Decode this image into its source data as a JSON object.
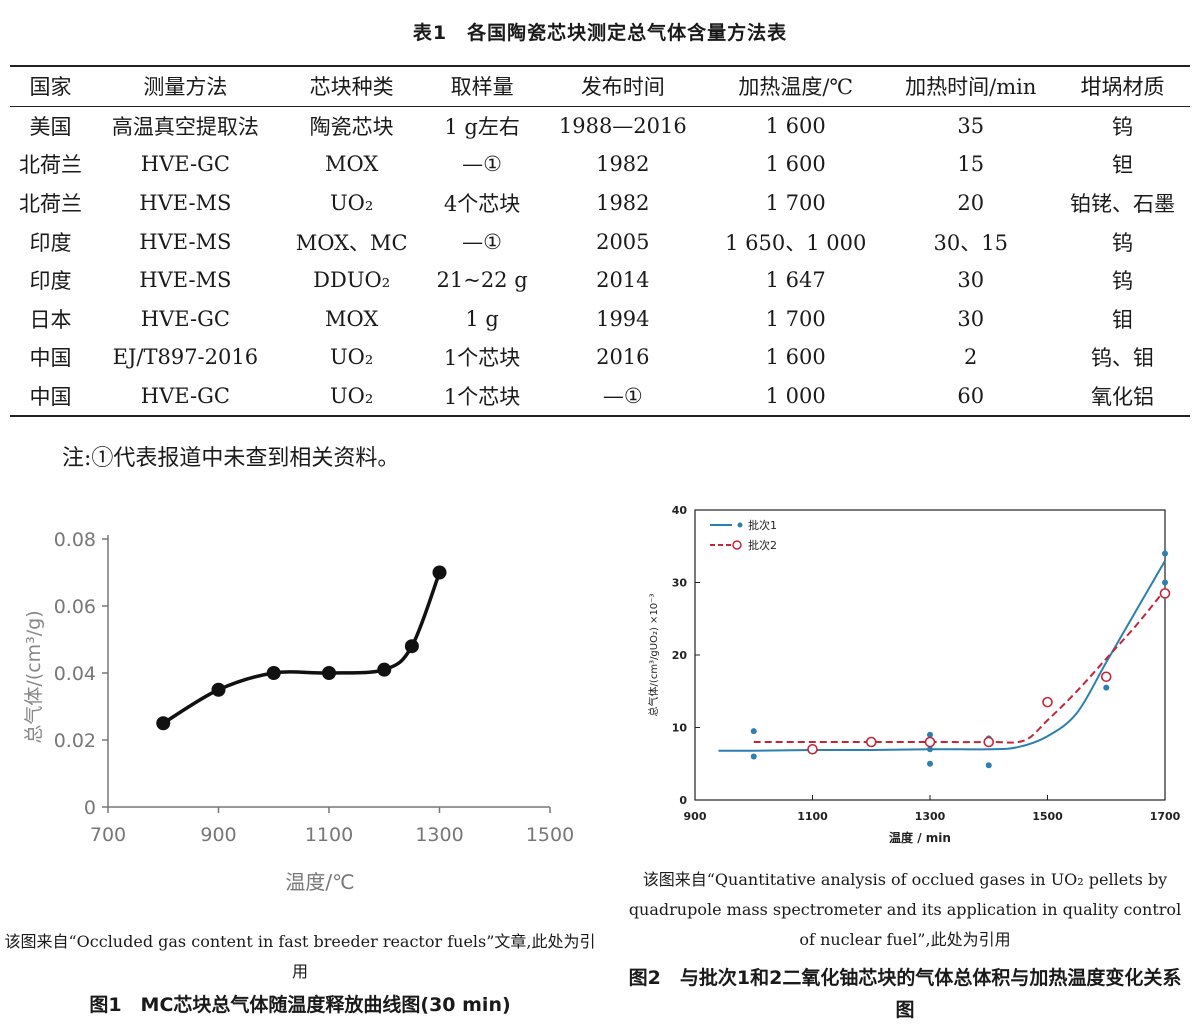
{
  "table": {
    "caption": "表1　各国陶瓷芯块测定总气体含量方法表",
    "headers": [
      "国家",
      "测量方法",
      "芯块种类",
      "取样量",
      "发布时间",
      "加热温度/℃",
      "加热时间/min",
      "坩埚材质"
    ],
    "rows": [
      [
        "美国",
        "高温真空提取法",
        "陶瓷芯块",
        "1 g左右",
        "1988—2016",
        "1 600",
        "35",
        "钨"
      ],
      [
        "北荷兰",
        "HVE-GC",
        "MOX",
        "—①",
        "1982",
        "1 600",
        "15",
        "钽"
      ],
      [
        "北荷兰",
        "HVE-MS",
        "UO₂",
        "4个芯块",
        "1982",
        "1 700",
        "20",
        "铂铑、石墨"
      ],
      [
        "印度",
        "HVE-MS",
        "MOX、MC",
        "—①",
        "2005",
        "1 650、1 000",
        "30、15",
        "钨"
      ],
      [
        "印度",
        "HVE-MS",
        "DDUO₂",
        "21~22 g",
        "2014",
        "1 647",
        "30",
        "钨"
      ],
      [
        "日本",
        "HVE-GC",
        "MOX",
        "1 g",
        "1994",
        "1 700",
        "30",
        "钼"
      ],
      [
        "中国",
        "EJ/T897-2016",
        "UO₂",
        "1个芯块",
        "2016",
        "1 600",
        "2",
        "钨、钼"
      ],
      [
        "中国",
        "HVE-GC",
        "UO₂",
        "1个芯块",
        "—①",
        "1 000",
        "60",
        "氧化铝"
      ]
    ],
    "note": "注:①代表报道中未查到相关资料。"
  },
  "fig1": {
    "source": "该图来自“Occluded gas content in fast breeder reactor fuels”文章,此处为引用",
    "caption": "图1　MC芯块总气体随温度释放曲线图(30 min)"
  },
  "fig2": {
    "source": "该图来自“Quantitative analysis of occlued gases in UO₂ pellets by quadrupole mass spectrometer and its application in quality control of nuclear fuel”,此处为引用",
    "caption": "图2　与批次1和2二氧化铀芯块的气体总体积与加热温度变化关系图"
  },
  "chart_data": [
    {
      "type": "line",
      "title": "",
      "xlabel": "温度/℃",
      "ylabel": "总气体/(cm³/g)",
      "xlim": [
        700,
        1500
      ],
      "ylim": [
        0,
        0.08
      ],
      "xticks": [
        "700",
        "900",
        "1100",
        "1300",
        "1500"
      ],
      "yticks": [
        "0",
        "0.02",
        "0.04",
        "0.06",
        "0.08"
      ],
      "series": [
        {
          "x": [
            800,
            900,
            1000,
            1100,
            1200,
            1250,
            1300
          ],
          "y": [
            0.025,
            0.035,
            0.04,
            0.04,
            0.041,
            0.048,
            0.07
          ]
        }
      ],
      "color": "#111111"
    },
    {
      "type": "scatter",
      "title": "",
      "xlabel": "温度 / min",
      "ylabel": "总气体/(cm³/gUO₂) ×10⁻³",
      "xlim": [
        900,
        1700
      ],
      "ylim": [
        0,
        40
      ],
      "xticks": [
        "900",
        "1100",
        "1300",
        "1500",
        "1700"
      ],
      "yticks": [
        "0",
        "10",
        "20",
        "30",
        "40"
      ],
      "legend": "top-left",
      "series": [
        {
          "name": "批次1",
          "color": "#2d7fb0",
          "points_x": [
            1000,
            1000,
            1300,
            1300,
            1300,
            1400,
            1400,
            1600,
            1700,
            1700
          ],
          "points_y": [
            9.5,
            6,
            9,
            7,
            5,
            8.5,
            4.8,
            15.5,
            34,
            30
          ],
          "line_x": [
            940,
            1000,
            1100,
            1200,
            1300,
            1400,
            1450,
            1500,
            1550,
            1600,
            1650,
            1700
          ],
          "line_y": [
            6.8,
            6.8,
            6.9,
            6.9,
            7,
            7,
            7.3,
            8.8,
            12,
            19,
            26,
            33
          ]
        },
        {
          "name": "批次2",
          "color": "#c0283a",
          "points_x": [
            1100,
            1200,
            1300,
            1400,
            1500,
            1600,
            1700
          ],
          "points_y": [
            7,
            8,
            8,
            8,
            13.5,
            17,
            28.5
          ],
          "line_x": [
            1000,
            1100,
            1200,
            1300,
            1400,
            1460,
            1500,
            1550,
            1600,
            1650,
            1700
          ],
          "line_y": [
            8,
            8,
            8,
            8,
            8,
            8.2,
            11,
            15,
            19.5,
            24,
            29
          ]
        }
      ]
    }
  ]
}
